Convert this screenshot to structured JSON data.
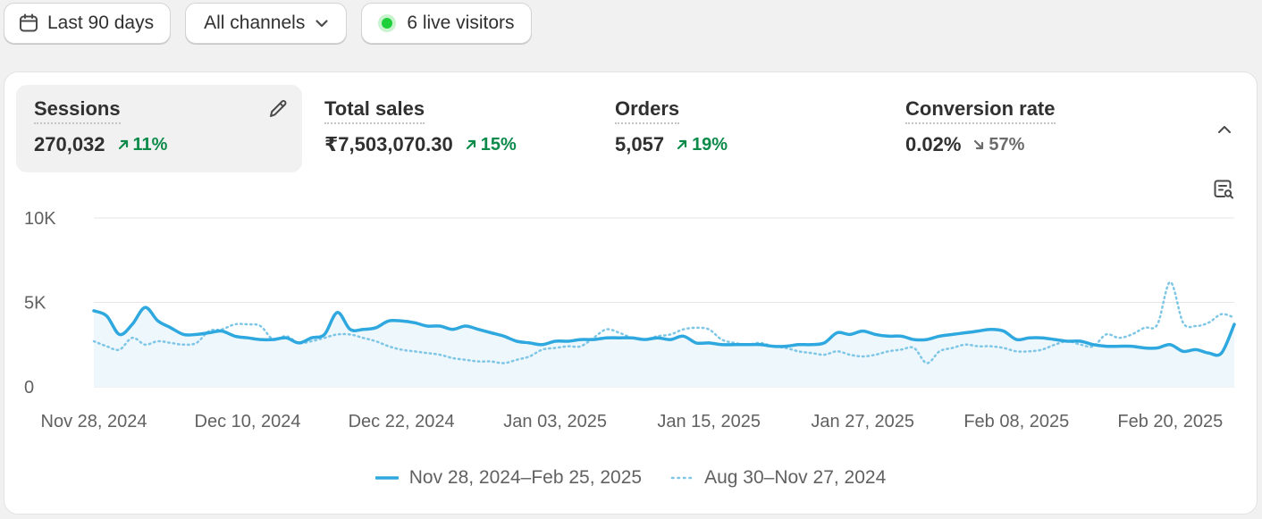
{
  "filters": {
    "date_range": "Last 90 days",
    "channels": "All channels",
    "live_visitors": "6 live visitors"
  },
  "metrics": [
    {
      "title": "Sessions",
      "value": "270,032",
      "change": "11%",
      "direction": "up"
    },
    {
      "title": "Total sales",
      "value": "₹7,503,070.30",
      "change": "15%",
      "direction": "up"
    },
    {
      "title": "Orders",
      "value": "5,057",
      "change": "19%",
      "direction": "up"
    },
    {
      "title": "Conversion rate",
      "value": "0.02%",
      "change": "57%",
      "direction": "down"
    }
  ],
  "colors": {
    "current": "#2ea8de",
    "previous": "#7ec6e6",
    "up": "#0b8a4a",
    "live": "#1fcf3a"
  },
  "chart_data": {
    "type": "line",
    "title": "Sessions",
    "xlabel": "",
    "ylabel": "",
    "ylim": [
      0,
      10000
    ],
    "yticks": [
      0,
      5000,
      10000
    ],
    "ytick_labels": [
      "0",
      "5K",
      "10K"
    ],
    "x_tick_labels": [
      "Nov 28, 2024",
      "Dec 10, 2024",
      "Dec 22, 2024",
      "Jan 03, 2025",
      "Jan 15, 2025",
      "Jan 27, 2025",
      "Feb 08, 2025",
      "Feb 20, 2025"
    ],
    "x_tick_days": [
      0,
      12,
      24,
      36,
      48,
      60,
      72,
      84
    ],
    "x_max_day": 89,
    "series": [
      {
        "name": "Nov 28, 2024–Feb 25, 2025",
        "style": "solid",
        "values": [
          4500,
          4200,
          3100,
          3700,
          4700,
          3900,
          3500,
          3100,
          3100,
          3200,
          3300,
          3000,
          2900,
          2800,
          2800,
          2900,
          2600,
          2900,
          3100,
          4400,
          3400,
          3400,
          3500,
          3900,
          3900,
          3800,
          3600,
          3600,
          3400,
          3600,
          3400,
          3200,
          3000,
          2700,
          2600,
          2500,
          2700,
          2700,
          2800,
          2800,
          2900,
          2900,
          2900,
          2800,
          2900,
          2800,
          3000,
          2600,
          2600,
          2500,
          2500,
          2500,
          2500,
          2400,
          2400,
          2500,
          2500,
          2600,
          3200,
          3100,
          3300,
          3100,
          3000,
          3000,
          2800,
          2800,
          3000,
          3100,
          3200,
          3300,
          3400,
          3300,
          2800,
          2900,
          2900,
          2800,
          2700,
          2700,
          2500,
          2400,
          2400,
          2400,
          2300,
          2300,
          2500,
          2100,
          2200,
          2000,
          2000,
          3700
        ]
      },
      {
        "name": "Aug 30–Nov 27, 2024",
        "style": "dotted",
        "values": [
          2700,
          2400,
          2200,
          2900,
          2500,
          2700,
          2600,
          2500,
          2600,
          3300,
          3400,
          3700,
          3700,
          3600,
          2800,
          3000,
          2600,
          2700,
          2900,
          3100,
          3100,
          2900,
          2700,
          2400,
          2200,
          2100,
          2000,
          1900,
          1700,
          1600,
          1500,
          1500,
          1400,
          1600,
          1800,
          2200,
          2300,
          2400,
          2400,
          2900,
          3400,
          3200,
          2900,
          2800,
          3000,
          3100,
          3400,
          3500,
          3400,
          2800,
          2600,
          2500,
          2600,
          2400,
          2300,
          2100,
          2000,
          1900,
          2100,
          1900,
          1800,
          1900,
          2100,
          2200,
          2300,
          1400,
          2100,
          2300,
          2500,
          2400,
          2400,
          2300,
          2100,
          2100,
          2200,
          2500,
          2700,
          2500,
          2400,
          3100,
          2900,
          3100,
          3500,
          3700,
          6200,
          3800,
          3600,
          3800,
          4300,
          4100
        ]
      }
    ]
  }
}
